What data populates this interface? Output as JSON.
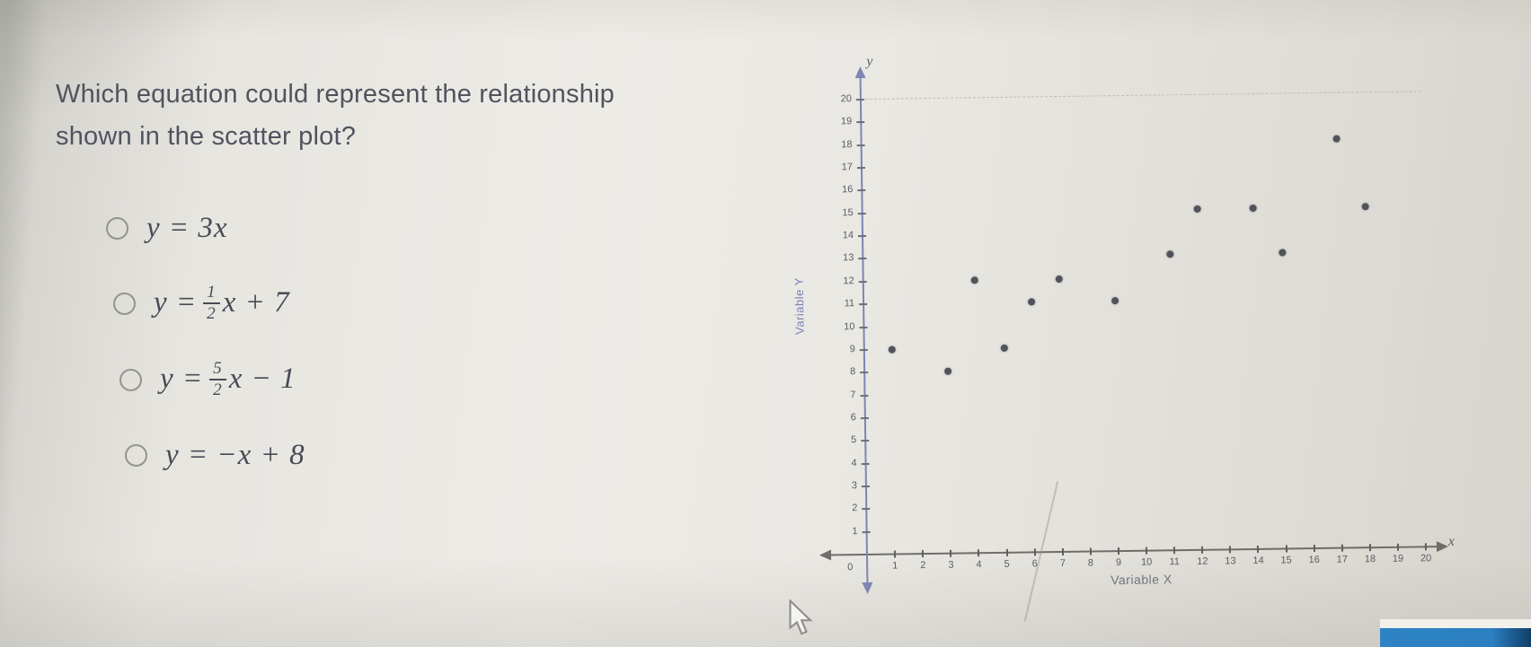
{
  "question": {
    "line1": "Which equation could represent the relationship",
    "line2": "shown in the scatter plot?"
  },
  "options": [
    {
      "text": "y = 3x"
    },
    {
      "before": "y =",
      "num": "1",
      "den": "2",
      "after": "x + 7"
    },
    {
      "before": "y =",
      "num": "5",
      "den": "2",
      "after": "x − 1"
    },
    {
      "text": "y = −x + 8"
    }
  ],
  "chart_data": {
    "type": "scatter",
    "xlabel": "Variable X",
    "ylabel": "Variable Y",
    "x_axis_letter": "x",
    "y_axis_letter": "y",
    "origin_label": "0",
    "xlim": [
      0,
      20
    ],
    "ylim": [
      0,
      20
    ],
    "x_tick_step": 1,
    "y_tick_step": 1,
    "top_dashed_gridline_y": 20,
    "points": [
      [
        1,
        9
      ],
      [
        3,
        8
      ],
      [
        4,
        12
      ],
      [
        5,
        9
      ],
      [
        6,
        11
      ],
      [
        7,
        12
      ],
      [
        9,
        11
      ],
      [
        11,
        13
      ],
      [
        12,
        15
      ],
      [
        14,
        15
      ],
      [
        15,
        13
      ],
      [
        17,
        18
      ],
      [
        18,
        15
      ]
    ]
  },
  "colors": {
    "axis_x": "#6e6d69",
    "axis_y": "#7e85b2",
    "point": "#50535a",
    "tick_label": "#595c66",
    "variable_y_label": "#7880b4",
    "variable_x_label": "#70737e",
    "blue_bar": "#2b80c2"
  }
}
